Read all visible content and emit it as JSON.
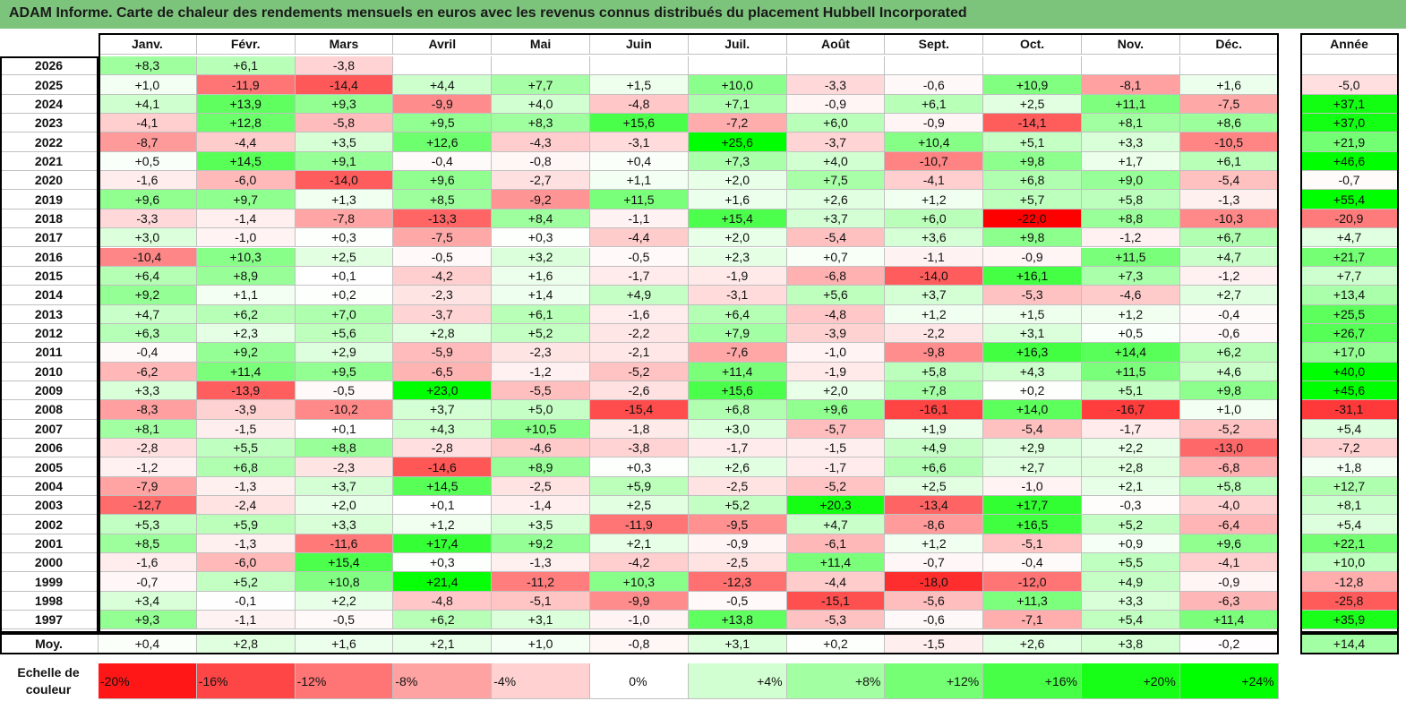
{
  "title": "ADAM Informe. Carte de chaleur des rendements mensuels en euros avec les revenus connus distribués du placement Hubbell Incorporated",
  "chart_data": {
    "type": "heatmap",
    "title": "ADAM Informe. Carte de chaleur des rendements mensuels en euros avec les revenus connus distribués du placement Hubbell Incorporated",
    "months": [
      "Janv.",
      "Févr.",
      "Mars",
      "Avril",
      "Mai",
      "Juin",
      "Juil.",
      "Août",
      "Sept.",
      "Oct.",
      "Nov.",
      "Déc."
    ],
    "year_header": "Année",
    "rows": [
      {
        "label": "2026",
        "values": [
          "+8,3",
          "+6,1",
          "-3,8",
          "",
          "",
          "",
          "",
          "",
          "",
          "",
          "",
          ""
        ],
        "year": ""
      },
      {
        "label": "2025",
        "values": [
          "+1,0",
          "-11,9",
          "-14,4",
          "+4,4",
          "+7,7",
          "+1,5",
          "+10,0",
          "-3,3",
          "-0,6",
          "+10,9",
          "-8,1",
          "+1,6"
        ],
        "year": "-5,0"
      },
      {
        "label": "2024",
        "values": [
          "+4,1",
          "+13,9",
          "+9,3",
          "-9,9",
          "+4,0",
          "-4,8",
          "+7,1",
          "-0,9",
          "+6,1",
          "+2,5",
          "+11,1",
          "-7,5"
        ],
        "year": "+37,1"
      },
      {
        "label": "2023",
        "values": [
          "-4,1",
          "+12,8",
          "-5,8",
          "+9,5",
          "+8,3",
          "+15,6",
          "-7,2",
          "+6,0",
          "-0,9",
          "-14,1",
          "+8,1",
          "+8,6"
        ],
        "year": "+37,0"
      },
      {
        "label": "2022",
        "values": [
          "-8,7",
          "-4,4",
          "+3,5",
          "+12,6",
          "-4,3",
          "-3,1",
          "+25,6",
          "-3,7",
          "+10,4",
          "+5,1",
          "+3,3",
          "-10,5"
        ],
        "year": "+21,9"
      },
      {
        "label": "2021",
        "values": [
          "+0,5",
          "+14,5",
          "+9,1",
          "-0,4",
          "-0,8",
          "+0,4",
          "+7,3",
          "+4,0",
          "-10,7",
          "+9,8",
          "+1,7",
          "+6,1"
        ],
        "year": "+46,6"
      },
      {
        "label": "2020",
        "values": [
          "-1,6",
          "-6,0",
          "-14,0",
          "+9,6",
          "-2,7",
          "+1,1",
          "+2,0",
          "+7,5",
          "-4,1",
          "+6,8",
          "+9,0",
          "-5,4"
        ],
        "year": "-0,7"
      },
      {
        "label": "2019",
        "values": [
          "+9,6",
          "+9,7",
          "+1,3",
          "+8,5",
          "-9,2",
          "+11,5",
          "+1,6",
          "+2,6",
          "+1,2",
          "+5,7",
          "+5,8",
          "-1,3"
        ],
        "year": "+55,4"
      },
      {
        "label": "2018",
        "values": [
          "-3,3",
          "-1,4",
          "-7,8",
          "-13,3",
          "+8,4",
          "-1,1",
          "+15,4",
          "+3,7",
          "+6,0",
          "-22,0",
          "+8,8",
          "-10,3"
        ],
        "year": "-20,9"
      },
      {
        "label": "2017",
        "values": [
          "+3,0",
          "-1,0",
          "+0,3",
          "-7,5",
          "+0,3",
          "-4,4",
          "+2,0",
          "-5,4",
          "+3,6",
          "+9,8",
          "-1,2",
          "+6,7"
        ],
        "year": "+4,7"
      },
      {
        "label": "2016",
        "values": [
          "-10,4",
          "+10,3",
          "+2,5",
          "-0,5",
          "+3,2",
          "-0,5",
          "+2,3",
          "+0,7",
          "-1,1",
          "-0,9",
          "+11,5",
          "+4,7"
        ],
        "year": "+21,7"
      },
      {
        "label": "2015",
        "values": [
          "+6,4",
          "+8,9",
          "+0,1",
          "-4,2",
          "+1,6",
          "-1,7",
          "-1,9",
          "-6,8",
          "-14,0",
          "+16,1",
          "+7,3",
          "-1,2"
        ],
        "year": "+7,7"
      },
      {
        "label": "2014",
        "values": [
          "+9,2",
          "+1,1",
          "+0,2",
          "-2,3",
          "+1,4",
          "+4,9",
          "-3,1",
          "+5,6",
          "+3,7",
          "-5,3",
          "-4,6",
          "+2,7"
        ],
        "year": "+13,4"
      },
      {
        "label": "2013",
        "values": [
          "+4,7",
          "+6,2",
          "+7,0",
          "-3,7",
          "+6,1",
          "-1,6",
          "+6,4",
          "-4,8",
          "+1,2",
          "+1,5",
          "+1,2",
          "-0,4"
        ],
        "year": "+25,5"
      },
      {
        "label": "2012",
        "values": [
          "+6,3",
          "+2,3",
          "+5,6",
          "+2,8",
          "+5,2",
          "-2,2",
          "+7,9",
          "-3,9",
          "-2,2",
          "+3,1",
          "+0,5",
          "-0,6"
        ],
        "year": "+26,7"
      },
      {
        "label": "2011",
        "values": [
          "-0,4",
          "+9,2",
          "+2,9",
          "-5,9",
          "-2,3",
          "-2,1",
          "-7,6",
          "-1,0",
          "-9,8",
          "+16,3",
          "+14,4",
          "+6,2"
        ],
        "year": "+17,0"
      },
      {
        "label": "2010",
        "values": [
          "-6,2",
          "+11,4",
          "+9,5",
          "-6,5",
          "-1,2",
          "-5,2",
          "+11,4",
          "-1,9",
          "+5,8",
          "+4,3",
          "+11,5",
          "+4,6"
        ],
        "year": "+40,0"
      },
      {
        "label": "2009",
        "values": [
          "+3,3",
          "-13,9",
          "-0,5",
          "+23,0",
          "-5,5",
          "-2,6",
          "+15,6",
          "+2,0",
          "+7,8",
          "+0,2",
          "+5,1",
          "+9,8"
        ],
        "year": "+45,6"
      },
      {
        "label": "2008",
        "values": [
          "-8,3",
          "-3,9",
          "-10,2",
          "+3,7",
          "+5,0",
          "-15,4",
          "+6,8",
          "+9,6",
          "-16,1",
          "+14,0",
          "-16,7",
          "+1,0"
        ],
        "year": "-31,1"
      },
      {
        "label": "2007",
        "values": [
          "+8,1",
          "-1,5",
          "+0,1",
          "+4,3",
          "+10,5",
          "-1,8",
          "+3,0",
          "-5,7",
          "+1,9",
          "-5,4",
          "-1,7",
          "-5,2"
        ],
        "year": "+5,4"
      },
      {
        "label": "2006",
        "values": [
          "-2,8",
          "+5,5",
          "+8,8",
          "-2,8",
          "-4,6",
          "-3,8",
          "-1,7",
          "-1,5",
          "+4,9",
          "+2,9",
          "+2,2",
          "-13,0"
        ],
        "year": "-7,2"
      },
      {
        "label": "2005",
        "values": [
          "-1,2",
          "+6,8",
          "-2,3",
          "-14,6",
          "+8,9",
          "+0,3",
          "+2,6",
          "-1,7",
          "+6,6",
          "+2,7",
          "+2,8",
          "-6,8"
        ],
        "year": "+1,8"
      },
      {
        "label": "2004",
        "values": [
          "-7,9",
          "-1,3",
          "+3,7",
          "+14,5",
          "-2,5",
          "+5,9",
          "-2,5",
          "-5,2",
          "+2,5",
          "-1,0",
          "+2,1",
          "+5,8"
        ],
        "year": "+12,7"
      },
      {
        "label": "2003",
        "values": [
          "-12,7",
          "-2,4",
          "+2,0",
          "+0,1",
          "-1,4",
          "+2,5",
          "+5,2",
          "+20,3",
          "-13,4",
          "+17,7",
          "-0,3",
          "-4,0"
        ],
        "year": "+8,1"
      },
      {
        "label": "2002",
        "values": [
          "+5,3",
          "+5,9",
          "+3,3",
          "+1,2",
          "+3,5",
          "-11,9",
          "-9,5",
          "+4,7",
          "-8,6",
          "+16,5",
          "+5,2",
          "-6,4"
        ],
        "year": "+5,4"
      },
      {
        "label": "2001",
        "values": [
          "+8,5",
          "-1,3",
          "-11,6",
          "+17,4",
          "+9,2",
          "+2,1",
          "-0,9",
          "-6,1",
          "+1,2",
          "-5,1",
          "+0,9",
          "+9,6"
        ],
        "year": "+22,1"
      },
      {
        "label": "2000",
        "values": [
          "-1,6",
          "-6,0",
          "+15,4",
          "+0,3",
          "-1,3",
          "-4,2",
          "-2,5",
          "+11,4",
          "-0,7",
          "-0,4",
          "+5,5",
          "-4,1"
        ],
        "year": "+10,0"
      },
      {
        "label": "1999",
        "values": [
          "-0,7",
          "+5,2",
          "+10,8",
          "+21,4",
          "-11,2",
          "+10,3",
          "-12,3",
          "-4,4",
          "-18,0",
          "-12,0",
          "+4,9",
          "-0,9"
        ],
        "year": "-12,8"
      },
      {
        "label": "1998",
        "values": [
          "+3,4",
          "-0,1",
          "+2,2",
          "-4,8",
          "-5,1",
          "-9,9",
          "-0,5",
          "-15,1",
          "-5,6",
          "+11,3",
          "+3,3",
          "-6,3"
        ],
        "year": "-25,8"
      },
      {
        "label": "1997",
        "values": [
          "+9,3",
          "-1,1",
          "-0,5",
          "+6,2",
          "+3,1",
          "-1,0",
          "+13,8",
          "-5,3",
          "-0,6",
          "-7,1",
          "+5,4",
          "+11,4"
        ],
        "year": "+35,9"
      }
    ],
    "average": {
      "label": "Moy.",
      "values": [
        "+0,4",
        "+2,8",
        "+1,6",
        "+2,1",
        "+1,0",
        "-0,8",
        "+3,1",
        "+0,2",
        "-1,5",
        "+2,6",
        "+3,8",
        "-0,2"
      ],
      "year": "+14,4"
    },
    "scale_label": "Echelle de couleur",
    "scale": [
      "-20%",
      "-16%",
      "-12%",
      "-8%",
      "-4%",
      "0%",
      "+4%",
      "+8%",
      "+12%",
      "+16%",
      "+20%",
      "+24%"
    ],
    "colors": {
      "negative": "#ff0000",
      "neutral": "#ffffff",
      "positive": "#00ff00",
      "title_bar": "#7cc47c",
      "border": "#000000",
      "gridline": "#c0c0c0"
    }
  }
}
